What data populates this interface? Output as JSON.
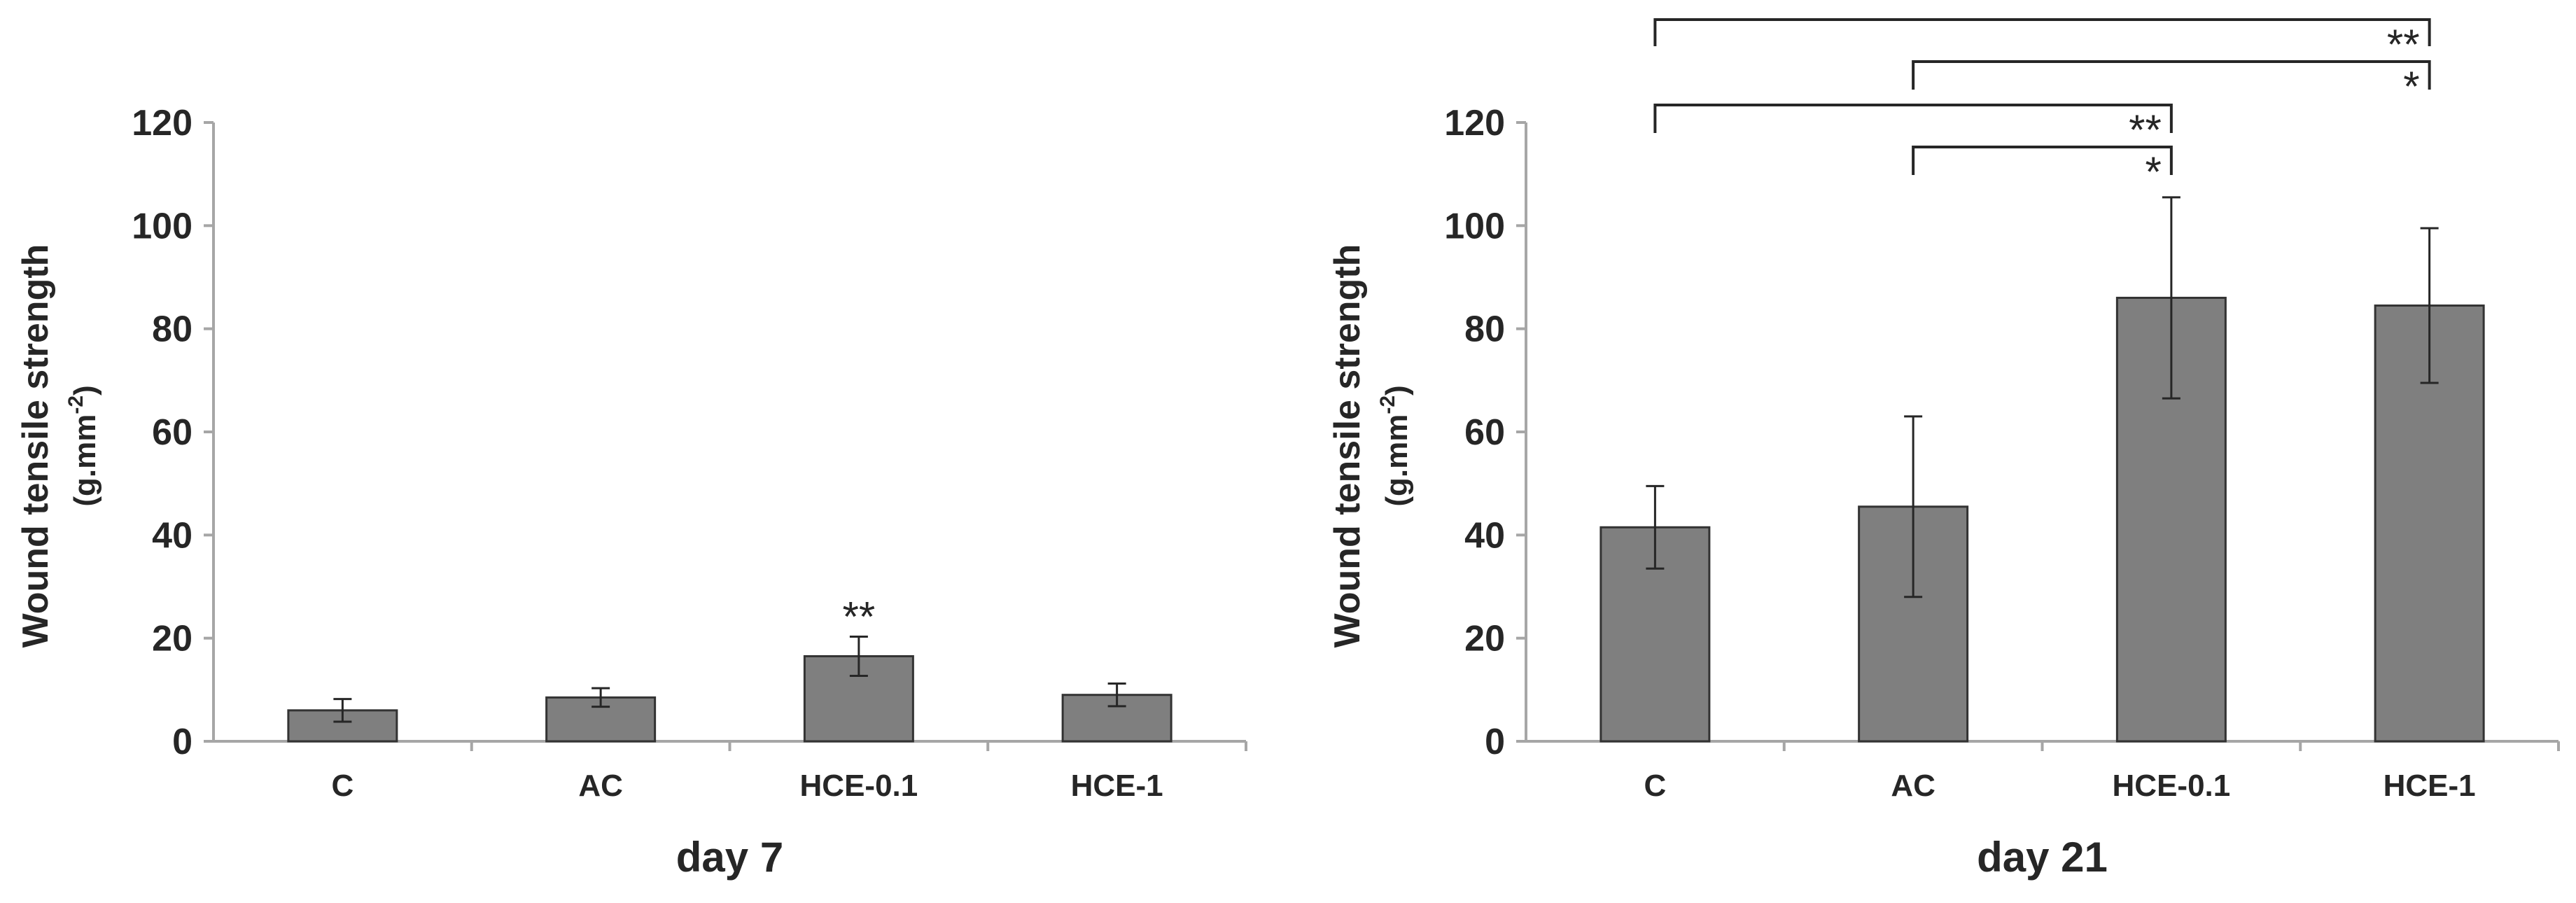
{
  "chart_data": [
    {
      "type": "bar",
      "title": "",
      "xlabel": "day 7",
      "ylabel": "Wound tensile strength",
      "yunit_text": "(g.mm",
      "yunit_sup": "-2",
      "yunit_close": ")",
      "ylim": [
        0,
        120
      ],
      "yticks": [
        "0",
        "20",
        "40",
        "60",
        "80",
        "100",
        "120"
      ],
      "categories": [
        "C",
        "AC",
        "HCE-0.1",
        "HCE-1"
      ],
      "values": [
        6,
        8.5,
        16.5,
        9
      ],
      "errors": [
        2.2,
        1.8,
        3.8,
        2.2
      ],
      "bar_annotations": [
        "",
        "",
        "**",
        ""
      ],
      "brackets": []
    },
    {
      "type": "bar",
      "title": "",
      "xlabel": "day 21",
      "ylabel": "Wound tensile strength",
      "yunit_text": "(g.mm",
      "yunit_sup": "-2",
      "yunit_close": ")",
      "ylim": [
        0,
        120
      ],
      "yticks": [
        "0",
        "20",
        "40",
        "60",
        "80",
        "100",
        "120"
      ],
      "categories": [
        "C",
        "AC",
        "HCE-0.1",
        "HCE-1"
      ],
      "values": [
        41.5,
        45.5,
        86,
        84.5
      ],
      "errors": [
        8,
        17.5,
        19.5,
        15
      ],
      "bar_annotations": [
        "",
        "",
        "",
        ""
      ],
      "brackets": [
        {
          "from": "C",
          "to": "HCE-1",
          "label": "**"
        },
        {
          "from": "AC",
          "to": "HCE-1",
          "label": "*"
        },
        {
          "from": "C",
          "to": "HCE-0.1",
          "label": "**"
        },
        {
          "from": "AC",
          "to": "HCE-0.1",
          "label": "*"
        }
      ]
    }
  ],
  "colors": {
    "bar_fill": "#7f7f7f",
    "bar_stroke": "#333333",
    "axis": "#a6a6a6",
    "ink": "#262626"
  }
}
